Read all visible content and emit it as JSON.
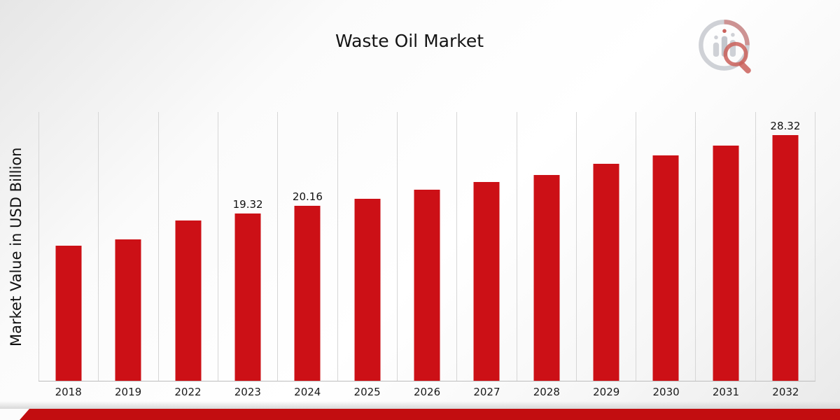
{
  "header": {
    "title": "Waste Oil Market"
  },
  "axes": {
    "ylabel": "Market Value in USD Billion"
  },
  "chart_data": {
    "type": "bar",
    "title": "Waste Oil Market",
    "xlabel": "",
    "ylabel": "Market Value in USD Billion",
    "categories": [
      "2018",
      "2019",
      "2022",
      "2023",
      "2024",
      "2025",
      "2026",
      "2027",
      "2028",
      "2029",
      "2030",
      "2031",
      "2032"
    ],
    "values": [
      15.6,
      16.3,
      18.5,
      19.32,
      20.16,
      21.0,
      22.0,
      22.9,
      23.7,
      25.0,
      26.0,
      27.1,
      28.32
    ],
    "data_labels": [
      "",
      "",
      "",
      "19.32",
      "20.16",
      "",
      "",
      "",
      "",
      "",
      "",
      "",
      "28.32"
    ],
    "ylim": [
      0,
      31
    ],
    "bar_color": "#cc1016",
    "grid": "vertical-only",
    "legend": "none"
  },
  "branding": {
    "logo_name": "market-research-future-logo",
    "accent_color": "#c20d10",
    "logo_gray": "#c7cad0",
    "logo_red": "#c2463f"
  }
}
